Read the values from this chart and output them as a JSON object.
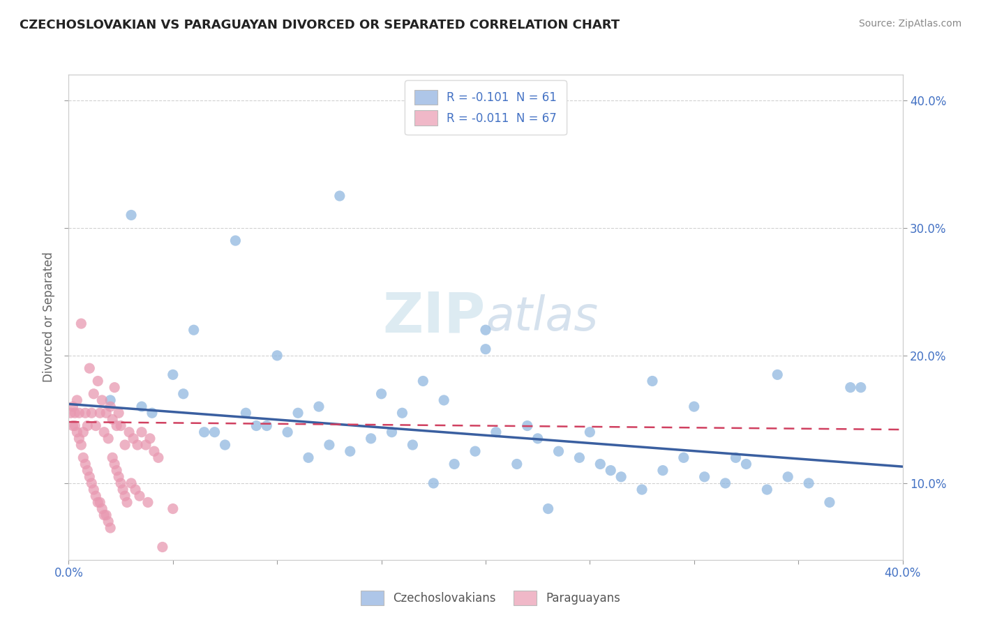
{
  "title": "CZECHOSLOVAKIAN VS PARAGUAYAN DIVORCED OR SEPARATED CORRELATION CHART",
  "source": "Source: ZipAtlas.com",
  "ylabel": "Divorced or Separated",
  "legend_blue_label": "R = -0.101  N = 61",
  "legend_pink_label": "R = -0.011  N = 67",
  "legend_bottom_blue": "Czechoslovakians",
  "legend_bottom_pink": "Paraguayans",
  "blue_color": "#aec6e8",
  "pink_color": "#f0b8c8",
  "blue_line_color": "#3a5fa0",
  "pink_line_color": "#d04060",
  "blue_scatter_color": "#90b8e0",
  "pink_scatter_color": "#e898b0",
  "background_color": "#ffffff",
  "grid_color": "#cccccc",
  "blue_R": -0.101,
  "pink_R": -0.011,
  "blue_N": 61,
  "pink_N": 67,
  "xmin": 0.0,
  "xmax": 0.4,
  "ymin": 0.04,
  "ymax": 0.42,
  "blue_trend_y0": 0.162,
  "blue_trend_y1": 0.113,
  "pink_trend_y0": 0.148,
  "pink_trend_y1": 0.142,
  "blue_scatter_x": [
    0.03,
    0.08,
    0.13,
    0.2,
    0.05,
    0.375,
    0.34,
    0.1,
    0.06,
    0.15,
    0.04,
    0.09,
    0.12,
    0.07,
    0.11,
    0.18,
    0.22,
    0.16,
    0.25,
    0.3,
    0.02,
    0.035,
    0.055,
    0.065,
    0.075,
    0.085,
    0.095,
    0.105,
    0.115,
    0.125,
    0.135,
    0.145,
    0.155,
    0.165,
    0.175,
    0.185,
    0.195,
    0.205,
    0.215,
    0.225,
    0.235,
    0.245,
    0.255,
    0.265,
    0.275,
    0.285,
    0.295,
    0.305,
    0.315,
    0.325,
    0.335,
    0.345,
    0.355,
    0.365,
    0.28,
    0.2,
    0.17,
    0.38,
    0.32,
    0.26,
    0.23
  ],
  "blue_scatter_y": [
    0.31,
    0.29,
    0.325,
    0.22,
    0.185,
    0.175,
    0.185,
    0.2,
    0.22,
    0.17,
    0.155,
    0.145,
    0.16,
    0.14,
    0.155,
    0.165,
    0.145,
    0.155,
    0.14,
    0.16,
    0.165,
    0.16,
    0.17,
    0.14,
    0.13,
    0.155,
    0.145,
    0.14,
    0.12,
    0.13,
    0.125,
    0.135,
    0.14,
    0.13,
    0.1,
    0.115,
    0.125,
    0.14,
    0.115,
    0.135,
    0.125,
    0.12,
    0.115,
    0.105,
    0.095,
    0.11,
    0.12,
    0.105,
    0.1,
    0.115,
    0.095,
    0.105,
    0.1,
    0.085,
    0.18,
    0.205,
    0.18,
    0.175,
    0.12,
    0.11,
    0.08
  ],
  "pink_scatter_x": [
    0.006,
    0.008,
    0.01,
    0.012,
    0.014,
    0.016,
    0.018,
    0.02,
    0.022,
    0.024,
    0.002,
    0.003,
    0.004,
    0.005,
    0.007,
    0.009,
    0.011,
    0.013,
    0.015,
    0.017,
    0.019,
    0.021,
    0.023,
    0.025,
    0.027,
    0.029,
    0.031,
    0.033,
    0.035,
    0.037,
    0.039,
    0.041,
    0.043,
    0.001,
    0.002,
    0.003,
    0.004,
    0.005,
    0.006,
    0.007,
    0.008,
    0.009,
    0.01,
    0.011,
    0.012,
    0.013,
    0.014,
    0.015,
    0.016,
    0.017,
    0.018,
    0.019,
    0.02,
    0.021,
    0.022,
    0.023,
    0.024,
    0.025,
    0.026,
    0.027,
    0.028,
    0.03,
    0.032,
    0.034,
    0.038,
    0.045,
    0.05
  ],
  "pink_scatter_y": [
    0.225,
    0.155,
    0.19,
    0.17,
    0.18,
    0.165,
    0.155,
    0.16,
    0.175,
    0.155,
    0.16,
    0.155,
    0.165,
    0.155,
    0.14,
    0.145,
    0.155,
    0.145,
    0.155,
    0.14,
    0.135,
    0.15,
    0.145,
    0.145,
    0.13,
    0.14,
    0.135,
    0.13,
    0.14,
    0.13,
    0.135,
    0.125,
    0.12,
    0.155,
    0.145,
    0.145,
    0.14,
    0.135,
    0.13,
    0.12,
    0.115,
    0.11,
    0.105,
    0.1,
    0.095,
    0.09,
    0.085,
    0.085,
    0.08,
    0.075,
    0.075,
    0.07,
    0.065,
    0.12,
    0.115,
    0.11,
    0.105,
    0.1,
    0.095,
    0.09,
    0.085,
    0.1,
    0.095,
    0.09,
    0.085,
    0.05,
    0.08
  ]
}
